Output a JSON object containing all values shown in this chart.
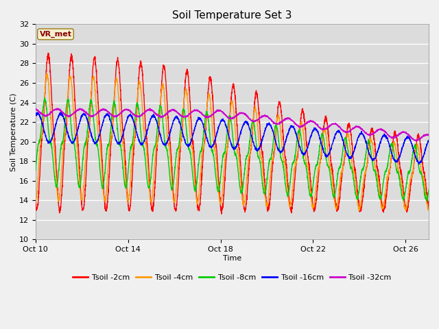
{
  "title": "Soil Temperature Set 3",
  "xlabel": "Time",
  "ylabel": "Soil Temperature (C)",
  "ylim": [
    10,
    32
  ],
  "yticks": [
    10,
    12,
    14,
    16,
    18,
    20,
    22,
    24,
    26,
    28,
    30,
    32
  ],
  "x_tick_positions": [
    0,
    4,
    8,
    12,
    16
  ],
  "x_tick_labels": [
    "Oct 10",
    "Oct 14",
    "Oct 18",
    "Oct 22",
    "Oct 26"
  ],
  "fig_bg_color": "#f0f0f0",
  "plot_bg_color": "#dcdcdc",
  "grid_color": "#ffffff",
  "series": [
    {
      "label": "Tsoil -2cm",
      "color": "#ff0000"
    },
    {
      "label": "Tsoil -4cm",
      "color": "#ff9900"
    },
    {
      "label": "Tsoil -8cm",
      "color": "#00cc00"
    },
    {
      "label": "Tsoil -16cm",
      "color": "#0000ff"
    },
    {
      "label": "Tsoil -32cm",
      "color": "#cc00cc"
    }
  ],
  "annotation_text": "VR_met"
}
